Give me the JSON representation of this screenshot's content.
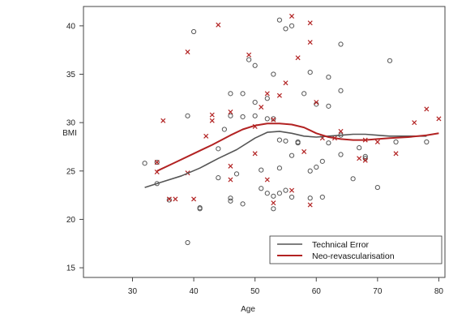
{
  "chart_data": {
    "type": "scatter",
    "xlabel": "Age",
    "ylabel": "BMI",
    "xlim": [
      22,
      81
    ],
    "ylim": [
      14,
      42
    ],
    "xticks": [
      30,
      40,
      50,
      60,
      70,
      80
    ],
    "yticks": [
      15,
      20,
      25,
      30,
      35,
      40
    ],
    "legend_position": "bottom-right",
    "series": [
      {
        "name": "Technical Error",
        "marker": "circle",
        "color": "#555555",
        "points": [
          [
            32,
            25.8
          ],
          [
            34,
            23.7
          ],
          [
            34,
            25.9
          ],
          [
            36,
            22.0
          ],
          [
            39,
            30.7
          ],
          [
            39,
            17.6
          ],
          [
            40,
            39.4
          ],
          [
            41,
            21.1
          ],
          [
            41,
            21.2
          ],
          [
            44,
            27.3
          ],
          [
            44,
            24.3
          ],
          [
            45,
            29.3
          ],
          [
            46,
            33.0
          ],
          [
            46,
            30.7
          ],
          [
            46,
            22.2
          ],
          [
            46,
            21.9
          ],
          [
            47,
            24.7
          ],
          [
            48,
            33.0
          ],
          [
            48,
            30.6
          ],
          [
            48,
            21.6
          ],
          [
            49,
            36.5
          ],
          [
            50,
            35.9
          ],
          [
            50,
            32.1
          ],
          [
            50,
            30.7
          ],
          [
            51,
            25.1
          ],
          [
            51,
            23.2
          ],
          [
            52,
            30.4
          ],
          [
            52,
            32.5
          ],
          [
            52,
            22.7
          ],
          [
            53,
            35.0
          ],
          [
            53,
            30.4
          ],
          [
            53,
            22.4
          ],
          [
            53,
            21.1
          ],
          [
            54,
            40.6
          ],
          [
            54,
            28.2
          ],
          [
            54,
            25.3
          ],
          [
            54,
            22.7
          ],
          [
            55,
            39.7
          ],
          [
            55,
            28.1
          ],
          [
            55,
            23.0
          ],
          [
            56,
            40.0
          ],
          [
            56,
            26.6
          ],
          [
            56,
            22.3
          ],
          [
            57,
            28.0
          ],
          [
            57,
            27.9
          ],
          [
            58,
            33.0
          ],
          [
            59,
            35.2
          ],
          [
            59,
            25.0
          ],
          [
            59,
            22.2
          ],
          [
            60,
            31.9
          ],
          [
            60,
            25.4
          ],
          [
            61,
            26.0
          ],
          [
            61,
            22.3
          ],
          [
            62,
            34.7
          ],
          [
            62,
            31.7
          ],
          [
            62,
            27.9
          ],
          [
            64,
            38.1
          ],
          [
            64,
            33.3
          ],
          [
            64,
            28.7
          ],
          [
            64,
            26.7
          ],
          [
            66,
            24.2
          ],
          [
            67,
            27.4
          ],
          [
            68,
            26.5
          ],
          [
            68,
            26.3
          ],
          [
            70,
            23.3
          ],
          [
            72,
            36.4
          ],
          [
            73,
            28.0
          ],
          [
            78,
            28.0
          ]
        ]
      },
      {
        "name": "Neo-revascularisation",
        "marker": "cross",
        "color": "#b22222",
        "points": [
          [
            34,
            25.9
          ],
          [
            34,
            24.9
          ],
          [
            35,
            30.2
          ],
          [
            36,
            22.1
          ],
          [
            37,
            22.1
          ],
          [
            39,
            37.3
          ],
          [
            39,
            24.8
          ],
          [
            40,
            22.1
          ],
          [
            42,
            28.6
          ],
          [
            43,
            30.8
          ],
          [
            43,
            30.2
          ],
          [
            44,
            40.1
          ],
          [
            46,
            31.1
          ],
          [
            46,
            25.5
          ],
          [
            46,
            24.1
          ],
          [
            49,
            37.0
          ],
          [
            50,
            29.6
          ],
          [
            50,
            26.8
          ],
          [
            51,
            31.6
          ],
          [
            52,
            33.0
          ],
          [
            52,
            24.1
          ],
          [
            53,
            30.3
          ],
          [
            53,
            21.7
          ],
          [
            54,
            32.8
          ],
          [
            55,
            34.1
          ],
          [
            56,
            41.0
          ],
          [
            56,
            23.0
          ],
          [
            57,
            36.7
          ],
          [
            58,
            27.0
          ],
          [
            59,
            40.3
          ],
          [
            59,
            38.3
          ],
          [
            59,
            21.5
          ],
          [
            60,
            32.1
          ],
          [
            61,
            28.4
          ],
          [
            63,
            28.4
          ],
          [
            64,
            29.1
          ],
          [
            67,
            26.3
          ],
          [
            68,
            26.1
          ],
          [
            68,
            28.2
          ],
          [
            70,
            28.0
          ],
          [
            73,
            26.8
          ],
          [
            76,
            30.0
          ],
          [
            78,
            31.4
          ],
          [
            80,
            30.4
          ]
        ]
      }
    ],
    "smooth_lines": [
      {
        "name": "Technical Error",
        "color": "#555555",
        "x": [
          32,
          35,
          38,
          41,
          44,
          47,
          50,
          52,
          54,
          56,
          58,
          60,
          62,
          64,
          66,
          68,
          70,
          72,
          75,
          78
        ],
        "y": [
          23.3,
          23.9,
          24.5,
          25.3,
          26.3,
          27.2,
          28.4,
          29.0,
          29.1,
          28.9,
          28.6,
          28.5,
          28.6,
          28.7,
          28.8,
          28.8,
          28.7,
          28.6,
          28.6,
          28.6
        ]
      },
      {
        "name": "Neo-revascularisation",
        "color": "#b22222",
        "x": [
          34,
          37,
          40,
          43,
          46,
          48,
          50,
          52,
          54,
          56,
          58,
          60,
          62,
          64,
          66,
          68,
          70,
          72,
          75,
          78,
          80
        ],
        "y": [
          25.0,
          25.9,
          26.8,
          27.7,
          28.7,
          29.3,
          29.7,
          29.9,
          29.9,
          29.8,
          29.5,
          28.9,
          28.5,
          28.3,
          28.2,
          28.2,
          28.3,
          28.4,
          28.5,
          28.7,
          28.9
        ]
      }
    ]
  }
}
